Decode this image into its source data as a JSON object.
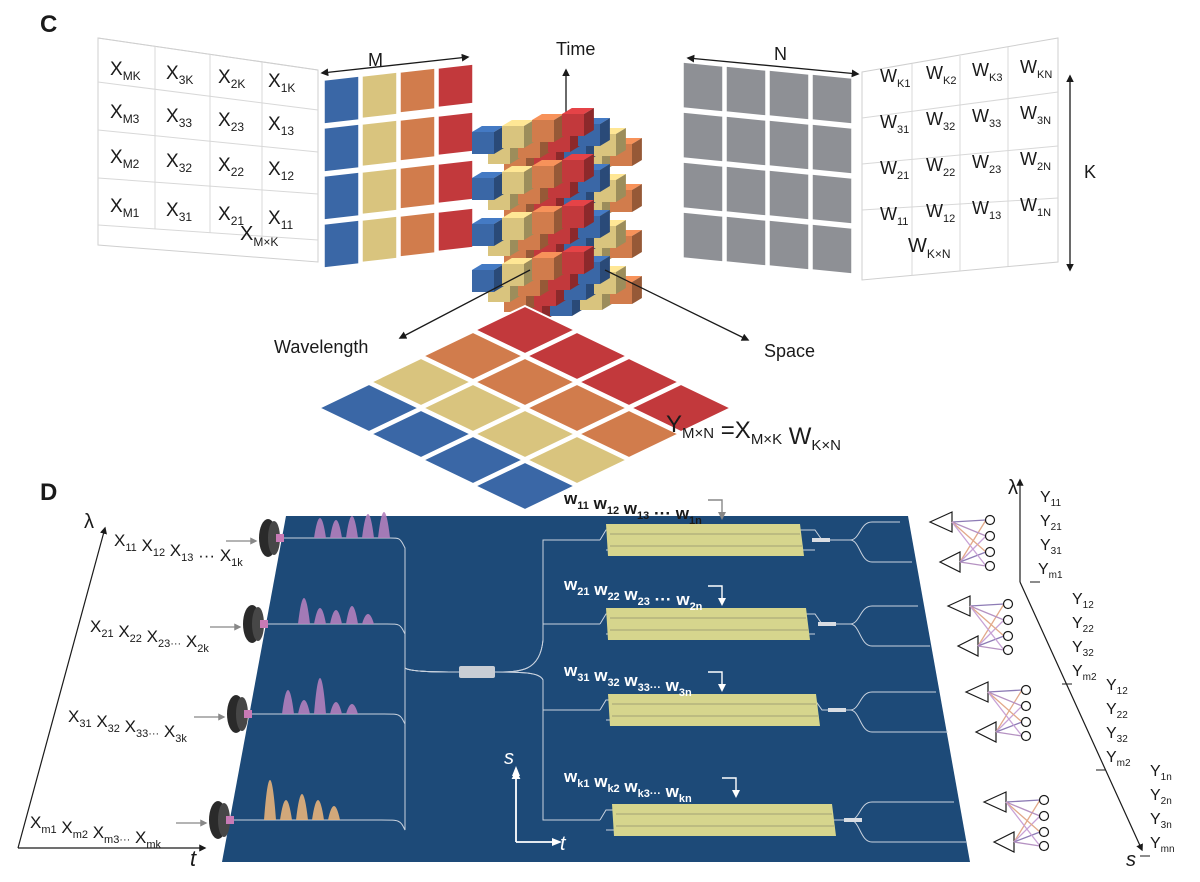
{
  "panel_c": {
    "label": "C",
    "axis_time": "Time",
    "axis_wavelength": "Wavelength",
    "axis_space": "Space",
    "dim_m": "M",
    "dim_n": "N",
    "dim_k": "K",
    "x_matrix_rows": [
      [
        "X_MK",
        "X_3K",
        "X_2K",
        "X_1K"
      ],
      [
        "X_M3",
        "X_33",
        "X_23",
        "X_13"
      ],
      [
        "X_M2",
        "X_32",
        "X_22",
        "X_12"
      ],
      [
        "X_M1",
        "X_31",
        "X_21",
        "X_11"
      ]
    ],
    "x_matrix_name": "X_M×K",
    "w_matrix_rows": [
      [
        "W_K1",
        "W_K2",
        "W_K3",
        "W_KN"
      ],
      [
        "W_31",
        "W_32",
        "W_33",
        "W_3N"
      ],
      [
        "W_21",
        "W_22",
        "W_23",
        "W_2N"
      ],
      [
        "W_11",
        "W_12",
        "W_13",
        "W_1N"
      ]
    ],
    "w_matrix_name": "W_K×N",
    "equation": "Y_M×N =X_M×K W_K×N",
    "colors": {
      "blue": "#3a67a6",
      "yellow": "#d9c47e",
      "orange": "#d17c4c",
      "red": "#c2393c",
      "gray": "#8e9095"
    }
  },
  "panel_d": {
    "label": "D",
    "axis_lambda": "λ",
    "axis_t": "t",
    "axis_s": "s",
    "input_rows": [
      "X_11 X_12 X_13 ··· X_1k",
      "X_21 X_22 X_23··· X_2k",
      "X_31 X_32 X_33··· X_3k",
      "X_m1 X_m2 X_m3··· X_mk"
    ],
    "weight_rows": [
      "w_11 w_12 w_13 ··· w_1n",
      "w_21 w_22 w_23 ··· w_2n",
      "w_31 w_32 w_33··· w_3n",
      "w_k1 w_k2 w_k3··· w_kn"
    ],
    "output_groups": [
      [
        "Y_11",
        "Y_21",
        "Y_31",
        "Y_m1"
      ],
      [
        "Y_12",
        "Y_22",
        "Y_32",
        "Y_m2"
      ],
      [
        "Y_12",
        "Y_22",
        "Y_32",
        "Y_m2"
      ],
      [
        "Y_1n",
        "Y_2n",
        "Y_3n",
        "Y_mn"
      ]
    ],
    "output_axis_lambda": "λ",
    "output_axis_s": "s",
    "colors": {
      "board": "#1d4a78",
      "modulator": "#d6d58d",
      "pulse_purple": "#b27fbd",
      "pulse_orange": "#e7b27a"
    }
  }
}
